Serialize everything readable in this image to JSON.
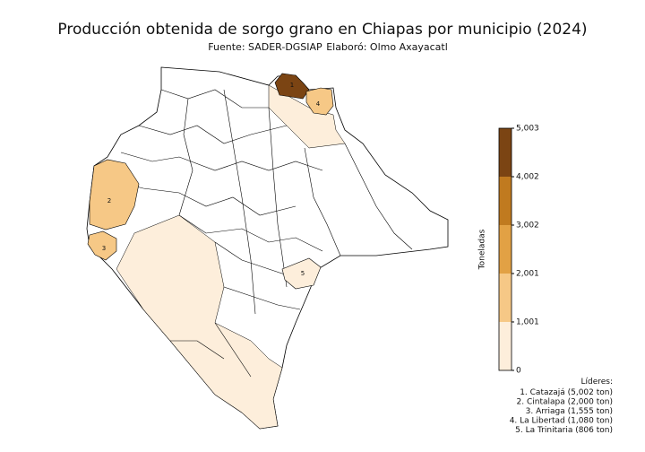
{
  "header": {
    "title": "Producción obtenida de sorgo grano en Chiapas por municipio (2024)",
    "source": "Fuente: SADER-DGSIAP",
    "author": "Elaboró: Olmo Axayacatl"
  },
  "colorbar": {
    "label": "Toneladas",
    "lim": [
      0,
      5003
    ],
    "ticks": [
      0,
      {
        "value": 1001,
        "label": "1,001"
      },
      {
        "value": 2001,
        "label": "2,001"
      },
      {
        "value": 3002,
        "label": "3,002"
      },
      {
        "value": 4002,
        "label": "4,002"
      },
      {
        "value": 5003,
        "label": "5,003"
      }
    ],
    "colors": [
      "#fdeedb",
      "#f6c886",
      "#e2a144",
      "#c07a1f",
      "#7b4413"
    ]
  },
  "leaders": {
    "title": "Líderes:",
    "items": [
      "1. Catazajá (5,002 ton)",
      "2. Cintalapa (2,000 ton)",
      "3. Arriaga (1,555 ton)",
      "4. La Libertad (1,080 ton)",
      "5. La Trinitaria (806 ton)"
    ],
    "map_labels": [
      1,
      2,
      3,
      4,
      5
    ],
    "values": [
      5002,
      2000,
      1555,
      1080,
      806
    ]
  }
}
